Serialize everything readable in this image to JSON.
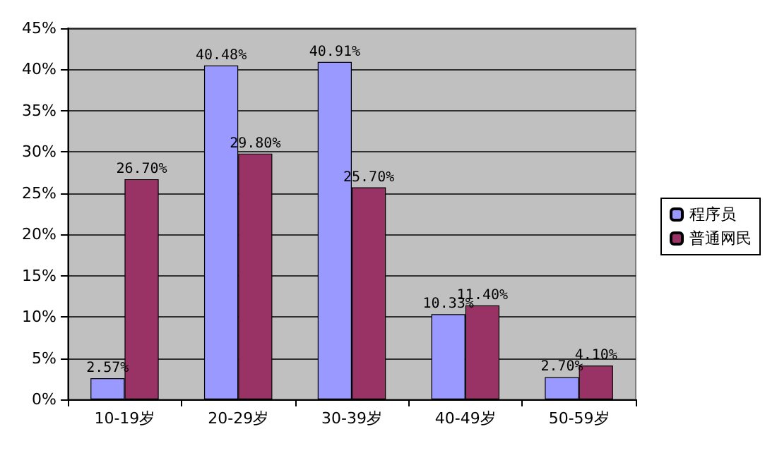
{
  "chart_data": {
    "type": "bar",
    "categories": [
      "10-19岁",
      "20-29岁",
      "30-39岁",
      "40-49岁",
      "50-59岁"
    ],
    "series": [
      {
        "name": "程序员",
        "color": "#9999ff",
        "values": [
          2.57,
          40.48,
          40.91,
          10.33,
          2.7
        ],
        "value_labels": [
          "2.57%",
          "40.48%",
          "40.91%",
          "10.33%",
          "2.70%"
        ]
      },
      {
        "name": "普通网民",
        "color": "#993366",
        "values": [
          26.7,
          29.8,
          25.7,
          11.4,
          4.1
        ],
        "value_labels": [
          "26.70%",
          "29.80%",
          "25.70%",
          "11.40%",
          "4.10%"
        ]
      }
    ],
    "ylim": [
      0,
      45
    ],
    "yticks": [
      {
        "value": 0,
        "label": "0%"
      },
      {
        "value": 5,
        "label": "5%"
      },
      {
        "value": 10,
        "label": "10%"
      },
      {
        "value": 15,
        "label": "15%"
      },
      {
        "value": 20,
        "label": "20%"
      },
      {
        "value": 25,
        "label": "25%"
      },
      {
        "value": 30,
        "label": "30%"
      },
      {
        "value": 35,
        "label": "35%"
      },
      {
        "value": 40,
        "label": "40%"
      },
      {
        "value": 45,
        "label": "45%"
      }
    ],
    "grid": "y",
    "legend": "right"
  }
}
